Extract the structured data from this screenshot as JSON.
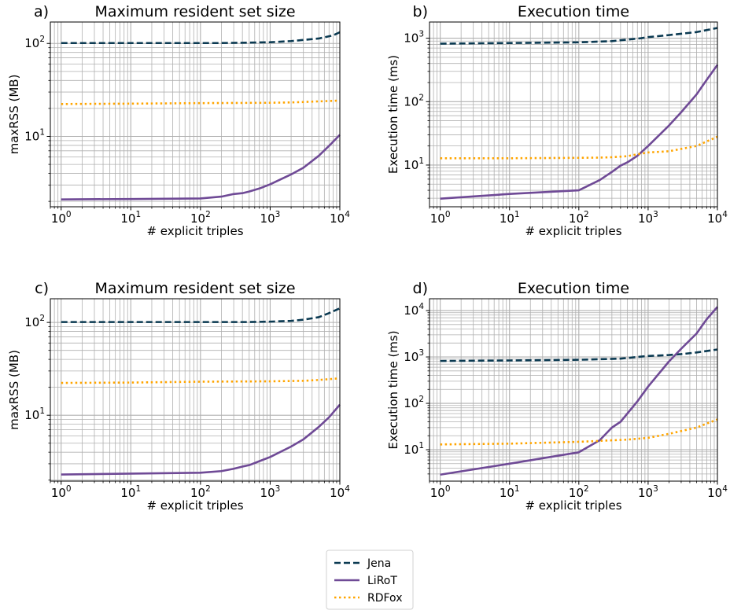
{
  "legend": {
    "entries": [
      {
        "name": "Jena",
        "color": "#0b3a52",
        "dash": "dashed"
      },
      {
        "name": "LiRoT",
        "color": "#6f4a96",
        "dash": "solid"
      },
      {
        "name": "RDFox",
        "color": "#ffa500",
        "dash": "dotted"
      }
    ],
    "placement": "bottom-center"
  },
  "chart_data": [
    {
      "type": "line",
      "panel_letter": "a)",
      "title": "Maximum resident set size",
      "xlabel": "# explicit triples",
      "ylabel": "maxRSS (MB)",
      "x_scale": "log",
      "y_scale": "log",
      "xlim": [
        0.7,
        10000
      ],
      "ylim": [
        1.75,
        170
      ],
      "x_ticks": [
        {
          "v": 1,
          "e": "0"
        },
        {
          "v": 10,
          "e": "1"
        },
        {
          "v": 100,
          "e": "2"
        },
        {
          "v": 1000,
          "e": "3"
        },
        {
          "v": 10000,
          "e": "4"
        }
      ],
      "y_ticks": [
        {
          "v": 10,
          "e": "1"
        },
        {
          "v": 100,
          "e": "2"
        }
      ],
      "grid": true,
      "series": [
        {
          "name": "Jena",
          "x": [
            1,
            10,
            100,
            200,
            500,
            1000,
            2000,
            5000,
            8000,
            10000
          ],
          "y": [
            101,
            101,
            101,
            101,
            102,
            103,
            106,
            113,
            122,
            132
          ]
        },
        {
          "name": "LiRoT",
          "x": [
            1,
            10,
            100,
            200,
            300,
            400,
            500,
            700,
            1000,
            2000,
            3000,
            5000,
            7000,
            10000
          ],
          "y": [
            2.1,
            2.12,
            2.15,
            2.25,
            2.4,
            2.45,
            2.55,
            2.75,
            3.05,
            3.9,
            4.6,
            6.2,
            7.9,
            10.4
          ]
        },
        {
          "name": "RDFox",
          "x": [
            1,
            10,
            100,
            1000,
            2000,
            5000,
            10000
          ],
          "y": [
            22.3,
            22.5,
            22.8,
            23.0,
            23.2,
            23.8,
            24.3
          ]
        }
      ]
    },
    {
      "type": "line",
      "panel_letter": "b)",
      "title": "Execution time",
      "xlabel": "# explicit triples",
      "ylabel": "Execution time (ms)",
      "x_scale": "log",
      "y_scale": "log",
      "xlim": [
        0.7,
        10000
      ],
      "ylim": [
        2.2,
        1800
      ],
      "x_ticks": [
        {
          "v": 1,
          "e": "0"
        },
        {
          "v": 10,
          "e": "1"
        },
        {
          "v": 100,
          "e": "2"
        },
        {
          "v": 1000,
          "e": "3"
        },
        {
          "v": 10000,
          "e": "4"
        }
      ],
      "y_ticks": [
        {
          "v": 10,
          "e": "1"
        },
        {
          "v": 100,
          "e": "2"
        },
        {
          "v": 1000,
          "e": "3"
        }
      ],
      "grid": true,
      "series": [
        {
          "name": "Jena",
          "x": [
            1,
            10,
            100,
            300,
            500,
            800,
            1000,
            2000,
            5000,
            10000
          ],
          "y": [
            820,
            840,
            860,
            900,
            950,
            1000,
            1040,
            1120,
            1250,
            1450
          ]
        },
        {
          "name": "LiRoT",
          "x": [
            1,
            10,
            100,
            200,
            300,
            400,
            500,
            700,
            1000,
            2000,
            3000,
            5000,
            7000,
            10000
          ],
          "y": [
            2.95,
            3.5,
            4.0,
            5.8,
            7.8,
            9.8,
            11,
            14,
            20,
            42,
            68,
            130,
            220,
            380
          ]
        },
        {
          "name": "RDFox",
          "x": [
            1,
            10,
            100,
            200,
            300,
            500,
            700,
            1000,
            2000,
            5000,
            10000
          ],
          "y": [
            12.8,
            12.8,
            13.0,
            13.1,
            13.3,
            13.8,
            14.8,
            15.8,
            16.5,
            20,
            28
          ]
        }
      ]
    },
    {
      "type": "line",
      "panel_letter": "c)",
      "title": "Maximum resident set size",
      "xlabel": "# explicit triples",
      "ylabel": "maxRSS (MB)",
      "x_scale": "log",
      "y_scale": "log",
      "xlim": [
        0.7,
        10000
      ],
      "ylim": [
        1.95,
        180
      ],
      "x_ticks": [
        {
          "v": 1,
          "e": "0"
        },
        {
          "v": 10,
          "e": "1"
        },
        {
          "v": 100,
          "e": "2"
        },
        {
          "v": 1000,
          "e": "3"
        },
        {
          "v": 10000,
          "e": "4"
        }
      ],
      "y_ticks": [
        {
          "v": 10,
          "e": "1"
        },
        {
          "v": 100,
          "e": "2"
        }
      ],
      "grid": true,
      "series": [
        {
          "name": "Jena",
          "x": [
            1,
            10,
            100,
            500,
            1000,
            2000,
            3000,
            5000,
            7000,
            10000
          ],
          "y": [
            101,
            101,
            101,
            101,
            102,
            104,
            107,
            114,
            126,
            142
          ]
        },
        {
          "name": "LiRoT",
          "x": [
            1,
            10,
            100,
            200,
            300,
            400,
            500,
            700,
            1000,
            2000,
            3000,
            5000,
            7000,
            10000
          ],
          "y": [
            2.3,
            2.35,
            2.4,
            2.5,
            2.65,
            2.8,
            2.9,
            3.2,
            3.55,
            4.6,
            5.5,
            7.5,
            9.5,
            13.0
          ]
        },
        {
          "name": "RDFox",
          "x": [
            1,
            10,
            100,
            1000,
            3000,
            5000,
            10000
          ],
          "y": [
            22.3,
            22.5,
            23.0,
            23.2,
            23.5,
            24.0,
            25.0
          ]
        }
      ]
    },
    {
      "type": "line",
      "panel_letter": "d)",
      "title": "Execution time",
      "xlabel": "# explicit triples",
      "ylabel": "Execution time (ms)",
      "x_scale": "log",
      "y_scale": "log",
      "xlim": [
        0.7,
        10000
      ],
      "ylim": [
        2.1,
        18000
      ],
      "x_ticks": [
        {
          "v": 1,
          "e": "0"
        },
        {
          "v": 10,
          "e": "1"
        },
        {
          "v": 100,
          "e": "2"
        },
        {
          "v": 1000,
          "e": "3"
        },
        {
          "v": 10000,
          "e": "4"
        }
      ],
      "y_ticks": [
        {
          "v": 10,
          "e": "1"
        },
        {
          "v": 100,
          "e": "2"
        },
        {
          "v": 1000,
          "e": "3"
        },
        {
          "v": 10000,
          "e": "4"
        }
      ],
      "grid": true,
      "series": [
        {
          "name": "Jena",
          "x": [
            1,
            10,
            100,
            400,
            700,
            1000,
            2000,
            3000,
            5000,
            10000
          ],
          "y": [
            820,
            840,
            870,
            920,
            1000,
            1050,
            1100,
            1150,
            1250,
            1450
          ]
        },
        {
          "name": "LiRoT",
          "x": [
            1,
            10,
            100,
            200,
            300,
            400,
            700,
            1000,
            2000,
            3000,
            5000,
            7000,
            10000
          ],
          "y": [
            2.9,
            5.0,
            8.8,
            16,
            30,
            40,
            110,
            230,
            800,
            1500,
            3200,
            6500,
            12000
          ]
        },
        {
          "name": "RDFox",
          "x": [
            1,
            10,
            100,
            200,
            500,
            1000,
            2000,
            5000,
            10000
          ],
          "y": [
            13,
            13.5,
            14.8,
            15.5,
            16.5,
            18,
            22,
            30,
            45
          ]
        }
      ]
    }
  ]
}
